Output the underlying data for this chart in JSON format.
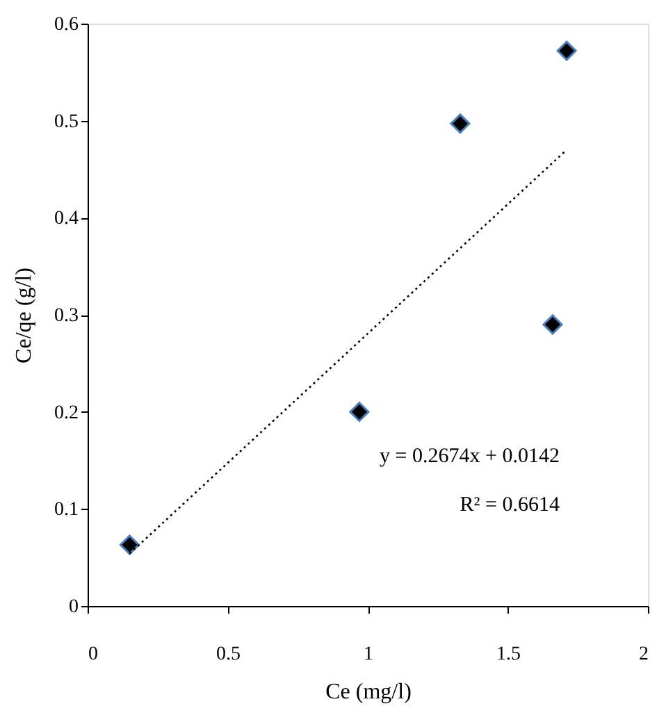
{
  "chart_data": {
    "type": "scatter",
    "xlabel": "Ce (mg/l)",
    "ylabel": "Ce/qe (g/l)",
    "xlim": [
      0,
      2
    ],
    "xticks": [
      0,
      0.5,
      1,
      1.5,
      2
    ],
    "ylim": [
      0,
      0.6
    ],
    "yticks": [
      0,
      0.1,
      0.2,
      0.3,
      0.4,
      0.5,
      0.6
    ],
    "grid": false,
    "series": [
      {
        "color": "#000000",
        "marker": "diamond",
        "x": [
          0.15,
          0.97,
          1.33,
          1.66,
          1.71
        ],
        "values": [
          0.063,
          0.2,
          0.497,
          0.29,
          0.572
        ]
      },
      {
        "type": "line",
        "color": "#000000",
        "line_style": "dotted",
        "x": [
          0.15,
          1.71
        ],
        "values": [
          0.054,
          0.47
        ]
      }
    ],
    "annotations": [
      "y = 0.2674x + 0.0142",
      "R² = 0.6614"
    ]
  }
}
